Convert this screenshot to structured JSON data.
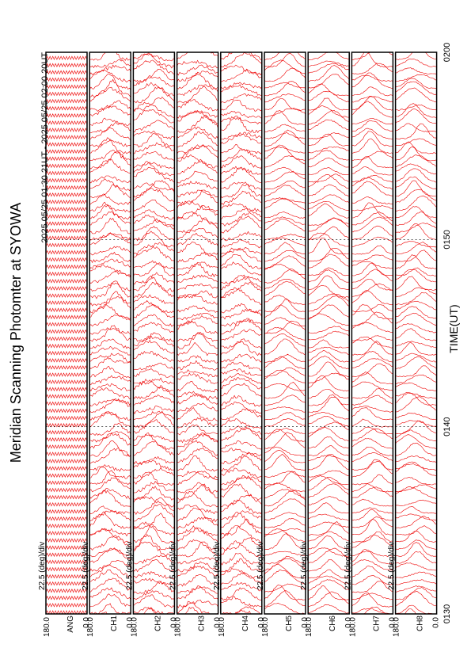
{
  "title": "Meridian Scanning Photomter at SYOWA",
  "subtitle": "2025 05/25 01:30 21UT - 2025 05/25 02:00 20UT",
  "x_label": "TIME(UT)",
  "time_ticks": [
    "0130",
    "0140",
    "0150",
    "0200"
  ],
  "panels": [
    {
      "label": "ANG",
      "scale": "22.5 (deg)/div",
      "max": "180.0",
      "min": "0.0"
    },
    {
      "label": "CH1",
      "scale": "22.5 (deg)/div",
      "max": "180.0",
      "min": "0.0"
    },
    {
      "label": "CH2",
      "scale": "22.5 (deg)/div",
      "max": "180.0",
      "min": "0.0"
    },
    {
      "label": "CH3",
      "scale": "22.5 (deg)/div",
      "max": "180.0",
      "min": "0.0"
    },
    {
      "label": "CH4",
      "scale": "22.5 (deg)/div",
      "max": "180.0",
      "min": "0.0"
    },
    {
      "label": "CH5",
      "scale": "22.5 (deg)/div",
      "max": "180.0",
      "min": "0.0"
    },
    {
      "label": "CH6",
      "scale": "22.5 (deg)/div",
      "max": "180.0",
      "min": "0.0"
    },
    {
      "label": "CH7",
      "scale": "22.5 (deg)/div",
      "max": "180.0",
      "min": "0.0"
    },
    {
      "label": "CH8",
      "scale": "22.5 (deg)/div",
      "max": "180.0",
      "min": "0.0"
    }
  ]
}
